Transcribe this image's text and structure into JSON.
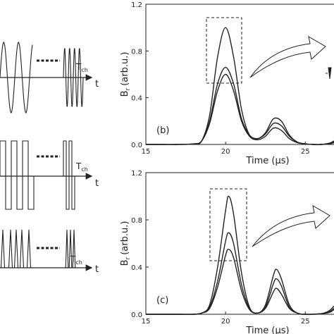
{
  "schematic": {
    "rows": [
      {
        "period_symbol": "T",
        "period_subscript": "ch",
        "axis_label": "t"
      },
      {
        "period_symbol": "T",
        "period_subscript": "ch",
        "axis_label": "t"
      },
      {
        "period_symbol": "T",
        "period_subscript": "ch",
        "axis_label": "t"
      }
    ]
  },
  "chart_data": [
    {
      "type": "line",
      "panel_label": "(b)",
      "x_label": "Time (μs)",
      "y_label_symbol": "B",
      "y_label_subscript": "r",
      "y_label_unit": "(arb.u.)",
      "x": [
        15,
        16,
        17,
        18,
        18.5,
        19,
        19.5,
        20,
        20.5,
        21,
        21.5,
        22,
        22.5,
        23,
        23.5,
        24,
        24.5,
        25,
        25.5,
        26,
        26.5,
        26.8
      ],
      "series": [
        {
          "color": "#222222",
          "values": [
            0,
            0,
            0,
            0.005,
            0.03,
            0.25,
            0.75,
            1.0,
            0.75,
            0.3,
            0.08,
            0.05,
            0.1,
            0.22,
            0.2,
            0.08,
            0.02,
            0.005,
            0,
            0,
            0.01,
            0.03
          ]
        },
        {
          "color": "#222222",
          "values": [
            0,
            0,
            0,
            0.005,
            0.03,
            0.2,
            0.52,
            0.66,
            0.52,
            0.22,
            0.08,
            0.05,
            0.09,
            0.18,
            0.16,
            0.07,
            0.02,
            0.005,
            0,
            0,
            0.01,
            0.02
          ]
        },
        {
          "color": "#222222",
          "values": [
            0,
            0,
            0,
            0.005,
            0.03,
            0.18,
            0.46,
            0.6,
            0.46,
            0.2,
            0.07,
            0.04,
            0.07,
            0.14,
            0.12,
            0.05,
            0.015,
            0.005,
            0,
            0,
            0.005,
            0.015
          ]
        }
      ],
      "xlim": [
        15,
        26.8
      ],
      "ylim": [
        0,
        1.2
      ],
      "xticks": [
        15,
        20,
        25
      ],
      "yticks": [
        {
          "value": 0,
          "label": "0.0"
        },
        0.4,
        0.8,
        1.2
      ]
    },
    {
      "type": "line",
      "panel_label": "(c)",
      "x_label": "Time (μs)",
      "y_label_symbol": "B",
      "y_label_subscript": "r",
      "y_label_unit": "(arb.u.)",
      "x": [
        15,
        16,
        17,
        18,
        18.5,
        19,
        19.5,
        20,
        20.2,
        20.5,
        21,
        21.5,
        22,
        22.5,
        23,
        23.2,
        23.5,
        24,
        24.5,
        25,
        26,
        26.5,
        26.8
      ],
      "series": [
        {
          "color": "#222222",
          "values": [
            0,
            0,
            0,
            0,
            0.01,
            0.08,
            0.4,
            0.88,
            1.0,
            0.85,
            0.35,
            0.06,
            0.01,
            0.08,
            0.33,
            0.38,
            0.3,
            0.08,
            0.01,
            0,
            0.005,
            0.03,
            0.07
          ]
        },
        {
          "color": "#222222",
          "values": [
            0,
            0,
            0,
            0,
            0.01,
            0.06,
            0.28,
            0.62,
            0.69,
            0.6,
            0.25,
            0.05,
            0.01,
            0.06,
            0.26,
            0.3,
            0.24,
            0.06,
            0.01,
            0,
            0.005,
            0.02,
            0.05
          ]
        },
        {
          "color": "#222222",
          "values": [
            0,
            0,
            0,
            0,
            0.01,
            0.05,
            0.23,
            0.5,
            0.55,
            0.48,
            0.2,
            0.04,
            0.01,
            0.05,
            0.19,
            0.22,
            0.17,
            0.05,
            0.01,
            0,
            0.005,
            0.015,
            0.04
          ]
        }
      ],
      "xlim": [
        15,
        26.8
      ],
      "ylim": [
        0,
        1.2
      ],
      "xticks": [
        15,
        20,
        25
      ],
      "yticks": [
        {
          "value": 0,
          "label": "0.0"
        },
        0.4,
        0.8,
        1.2
      ]
    }
  ]
}
